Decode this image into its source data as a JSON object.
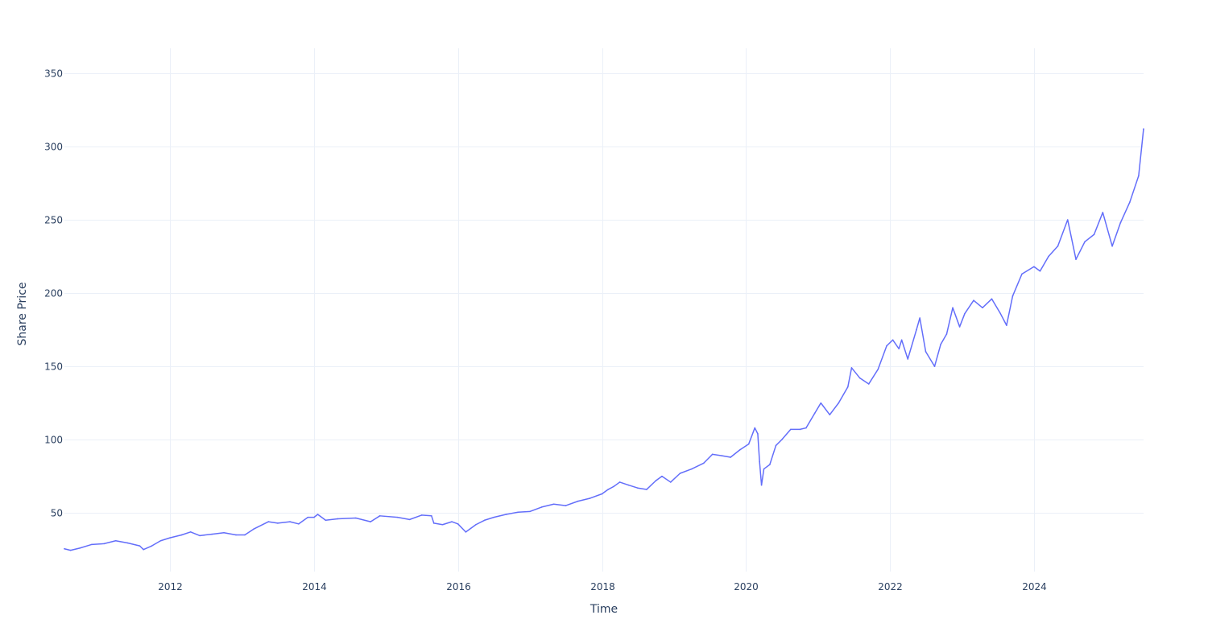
{
  "chart_data": {
    "type": "line",
    "title": "",
    "xlabel": "Time",
    "ylabel": "Share Price",
    "x_range": [
      "2010-07-15",
      "2025-07-10"
    ],
    "ylim": [
      10,
      367
    ],
    "grid": true,
    "legend": "none",
    "colors": {
      "line": "#636efa",
      "grid": "#ebf0f8",
      "text": "#2a3f5f"
    },
    "x_ticks": [
      {
        "label": "2012",
        "value": "2012-01-01"
      },
      {
        "label": "2014",
        "value": "2014-01-01"
      },
      {
        "label": "2016",
        "value": "2016-01-01"
      },
      {
        "label": "2018",
        "value": "2018-01-01"
      },
      {
        "label": "2020",
        "value": "2020-01-01"
      },
      {
        "label": "2022",
        "value": "2022-01-01"
      },
      {
        "label": "2024",
        "value": "2024-01-01"
      }
    ],
    "y_ticks": [
      {
        "label": "50",
        "value": 50
      },
      {
        "label": "100",
        "value": 100
      },
      {
        "label": "150",
        "value": 150
      },
      {
        "label": "200",
        "value": 200
      },
      {
        "label": "250",
        "value": 250
      },
      {
        "label": "300",
        "value": 300
      },
      {
        "label": "350",
        "value": 350
      }
    ],
    "series": [
      {
        "points": [
          [
            "2010-07-15",
            25.5
          ],
          [
            "2010-08-15",
            24.5
          ],
          [
            "2010-10-01",
            26
          ],
          [
            "2010-12-01",
            28.5
          ],
          [
            "2011-02-01",
            29
          ],
          [
            "2011-04-01",
            31
          ],
          [
            "2011-06-01",
            29.5
          ],
          [
            "2011-08-01",
            27.5
          ],
          [
            "2011-08-20",
            25
          ],
          [
            "2011-10-01",
            27.5
          ],
          [
            "2011-11-15",
            31
          ],
          [
            "2012-01-01",
            33
          ],
          [
            "2012-03-01",
            35
          ],
          [
            "2012-04-15",
            37
          ],
          [
            "2012-06-01",
            34.5
          ],
          [
            "2012-08-01",
            35.5
          ],
          [
            "2012-10-01",
            36.5
          ],
          [
            "2012-12-01",
            35
          ],
          [
            "2013-01-15",
            35
          ],
          [
            "2013-03-01",
            39
          ],
          [
            "2013-05-15",
            44
          ],
          [
            "2013-07-01",
            43
          ],
          [
            "2013-09-01",
            44
          ],
          [
            "2013-10-15",
            42.5
          ],
          [
            "2013-12-01",
            47
          ],
          [
            "2014-01-01",
            47
          ],
          [
            "2014-01-20",
            49
          ],
          [
            "2014-03-01",
            45
          ],
          [
            "2014-05-01",
            46
          ],
          [
            "2014-08-01",
            46.5
          ],
          [
            "2014-10-15",
            44
          ],
          [
            "2014-12-01",
            48
          ],
          [
            "2015-03-01",
            47
          ],
          [
            "2015-05-01",
            45.5
          ],
          [
            "2015-07-01",
            48.5
          ],
          [
            "2015-08-20",
            48
          ],
          [
            "2015-09-01",
            43
          ],
          [
            "2015-10-15",
            42
          ],
          [
            "2015-12-01",
            44
          ],
          [
            "2016-01-01",
            42.5
          ],
          [
            "2016-02-10",
            37
          ],
          [
            "2016-04-01",
            42
          ],
          [
            "2016-05-15",
            45
          ],
          [
            "2016-07-01",
            47
          ],
          [
            "2016-09-01",
            49
          ],
          [
            "2016-11-01",
            50.5
          ],
          [
            "2017-01-01",
            51
          ],
          [
            "2017-03-01",
            54
          ],
          [
            "2017-05-01",
            56
          ],
          [
            "2017-07-01",
            55
          ],
          [
            "2017-09-01",
            58
          ],
          [
            "2017-11-01",
            60
          ],
          [
            "2018-01-01",
            63
          ],
          [
            "2018-02-01",
            66
          ],
          [
            "2018-03-01",
            68
          ],
          [
            "2018-04-01",
            71
          ],
          [
            "2018-05-15",
            69
          ],
          [
            "2018-07-01",
            67
          ],
          [
            "2018-08-15",
            66
          ],
          [
            "2018-10-01",
            72
          ],
          [
            "2018-11-01",
            75
          ],
          [
            "2018-12-15",
            71
          ],
          [
            "2019-02-01",
            77
          ],
          [
            "2019-04-01",
            80
          ],
          [
            "2019-06-01",
            84
          ],
          [
            "2019-07-15",
            90
          ],
          [
            "2019-09-01",
            89
          ],
          [
            "2019-10-15",
            88
          ],
          [
            "2019-12-01",
            93
          ],
          [
            "2020-01-15",
            97
          ],
          [
            "2020-02-15",
            108
          ],
          [
            "2020-03-01",
            104
          ],
          [
            "2020-03-10",
            85
          ],
          [
            "2020-03-20",
            69
          ],
          [
            "2020-04-01",
            80
          ],
          [
            "2020-05-01",
            83
          ],
          [
            "2020-06-01",
            96
          ],
          [
            "2020-07-01",
            100
          ],
          [
            "2020-08-15",
            107
          ],
          [
            "2020-10-01",
            107
          ],
          [
            "2020-11-01",
            108
          ],
          [
            "2020-12-15",
            118
          ],
          [
            "2021-01-15",
            125
          ],
          [
            "2021-03-01",
            117
          ],
          [
            "2021-04-15",
            125
          ],
          [
            "2021-06-01",
            136
          ],
          [
            "2021-06-20",
            149
          ],
          [
            "2021-08-01",
            142
          ],
          [
            "2021-09-15",
            138
          ],
          [
            "2021-11-01",
            148
          ],
          [
            "2021-12-15",
            164
          ],
          [
            "2022-01-15",
            168
          ],
          [
            "2022-02-15",
            162
          ],
          [
            "2022-03-01",
            168
          ],
          [
            "2022-04-01",
            155
          ],
          [
            "2022-05-15",
            175
          ],
          [
            "2022-06-01",
            183
          ],
          [
            "2022-07-01",
            160
          ],
          [
            "2022-08-15",
            150
          ],
          [
            "2022-09-15",
            165
          ],
          [
            "2022-10-15",
            172
          ],
          [
            "2022-11-15",
            190
          ],
          [
            "2022-12-20",
            177
          ],
          [
            "2023-01-15",
            186
          ],
          [
            "2023-03-01",
            195
          ],
          [
            "2023-04-15",
            190
          ],
          [
            "2023-06-01",
            196
          ],
          [
            "2023-07-15",
            186
          ],
          [
            "2023-08-15",
            178
          ],
          [
            "2023-09-15",
            198
          ],
          [
            "2023-11-01",
            213
          ],
          [
            "2024-01-01",
            218
          ],
          [
            "2024-02-01",
            215
          ],
          [
            "2024-03-15",
            225
          ],
          [
            "2024-05-01",
            232
          ],
          [
            "2024-06-20",
            250
          ],
          [
            "2024-08-01",
            223
          ],
          [
            "2024-09-15",
            235
          ],
          [
            "2024-11-01",
            240
          ],
          [
            "2024-12-15",
            255
          ],
          [
            "2025-02-01",
            232
          ],
          [
            "2025-03-15",
            248
          ],
          [
            "2025-05-01",
            262
          ],
          [
            "2025-06-15",
            280
          ],
          [
            "2025-07-10",
            312
          ]
        ]
      }
    ]
  }
}
